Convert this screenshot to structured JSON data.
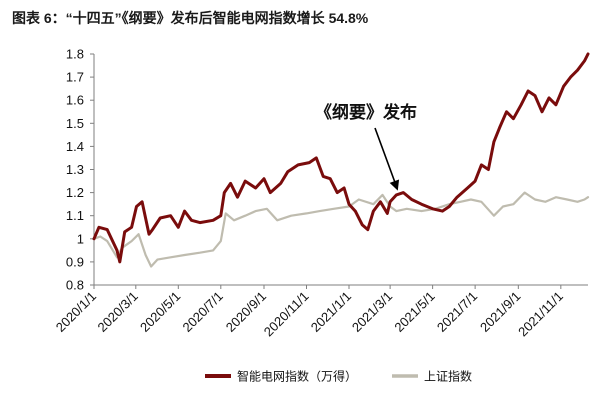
{
  "chart_data": {
    "type": "line",
    "title": "图表 6：“十四五”《纲要》发布后智能电网指数增长 54.8%",
    "xlabel": "",
    "ylabel": "",
    "ylim": [
      0.8,
      1.8
    ],
    "yticks": [
      "0.8",
      "0.9",
      "1",
      "1.1",
      "1.2",
      "1.3",
      "1.4",
      "1.5",
      "1.6",
      "1.7",
      "1.8"
    ],
    "xticks": [
      "2020/1/1",
      "2020/3/1",
      "2020/5/1",
      "2020/7/1",
      "2020/9/1",
      "2020/11/1",
      "2021/1/1",
      "2021/3/1",
      "2021/5/1",
      "2021/7/1",
      "2021/9/1",
      "2021/11/1"
    ],
    "grid": false,
    "legend_position": "bottom",
    "annotation": {
      "text": "《纲要》发布",
      "x": "2021/3/12",
      "y": 1.2
    },
    "colors": {
      "smart_grid": "#7a0c0c",
      "shanghai": "#bfbcaf"
    },
    "series": [
      {
        "name": "智能电网指数（万得）",
        "points": [
          [
            "2020/1/1",
            1.0
          ],
          [
            "2020/1/8",
            1.05
          ],
          [
            "2020/1/20",
            1.04
          ],
          [
            "2020/2/3",
            0.95
          ],
          [
            "2020/2/7",
            0.9
          ],
          [
            "2020/2/14",
            1.03
          ],
          [
            "2020/2/24",
            1.05
          ],
          [
            "2020/3/2",
            1.14
          ],
          [
            "2020/3/10",
            1.16
          ],
          [
            "2020/3/20",
            1.02
          ],
          [
            "2020/3/25",
            1.04
          ],
          [
            "2020/4/5",
            1.09
          ],
          [
            "2020/4/20",
            1.1
          ],
          [
            "2020/5/1",
            1.05
          ],
          [
            "2020/5/10",
            1.12
          ],
          [
            "2020/5/20",
            1.08
          ],
          [
            "2020/6/1",
            1.07
          ],
          [
            "2020/6/20",
            1.08
          ],
          [
            "2020/7/1",
            1.1
          ],
          [
            "2020/7/6",
            1.2
          ],
          [
            "2020/7/15",
            1.24
          ],
          [
            "2020/7/25",
            1.18
          ],
          [
            "2020/8/5",
            1.25
          ],
          [
            "2020/8/20",
            1.22
          ],
          [
            "2020/9/1",
            1.26
          ],
          [
            "2020/9/10",
            1.2
          ],
          [
            "2020/9/25",
            1.24
          ],
          [
            "2020/10/5",
            1.29
          ],
          [
            "2020/10/20",
            1.32
          ],
          [
            "2020/11/5",
            1.33
          ],
          [
            "2020/11/15",
            1.35
          ],
          [
            "2020/11/25",
            1.27
          ],
          [
            "2020/12/5",
            1.26
          ],
          [
            "2020/12/15",
            1.2
          ],
          [
            "2020/12/25",
            1.22
          ],
          [
            "2021/1/1",
            1.15
          ],
          [
            "2021/1/10",
            1.12
          ],
          [
            "2021/1/20",
            1.06
          ],
          [
            "2021/1/28",
            1.04
          ],
          [
            "2021/2/5",
            1.12
          ],
          [
            "2021/2/15",
            1.16
          ],
          [
            "2021/2/25",
            1.11
          ],
          [
            "2021/3/1",
            1.16
          ],
          [
            "2021/3/10",
            1.19
          ],
          [
            "2021/3/20",
            1.2
          ],
          [
            "2021/4/1",
            1.17
          ],
          [
            "2021/4/15",
            1.15
          ],
          [
            "2021/5/1",
            1.13
          ],
          [
            "2021/5/15",
            1.12
          ],
          [
            "2021/5/25",
            1.14
          ],
          [
            "2021/6/5",
            1.18
          ],
          [
            "2021/6/20",
            1.22
          ],
          [
            "2021/7/1",
            1.25
          ],
          [
            "2021/7/10",
            1.32
          ],
          [
            "2021/7/20",
            1.3
          ],
          [
            "2021/7/28",
            1.42
          ],
          [
            "2021/8/5",
            1.48
          ],
          [
            "2021/8/15",
            1.55
          ],
          [
            "2021/8/25",
            1.52
          ],
          [
            "2021/9/5",
            1.58
          ],
          [
            "2021/9/15",
            1.64
          ],
          [
            "2021/9/25",
            1.62
          ],
          [
            "2021/10/5",
            1.55
          ],
          [
            "2021/10/15",
            1.61
          ],
          [
            "2021/10/25",
            1.58
          ],
          [
            "2021/11/5",
            1.66
          ],
          [
            "2021/11/15",
            1.7
          ],
          [
            "2021/11/25",
            1.73
          ],
          [
            "2021/12/5",
            1.77
          ],
          [
            "2021/12/10",
            1.8
          ]
        ]
      },
      {
        "name": "上证指数",
        "points": [
          [
            "2020/1/1",
            1.0
          ],
          [
            "2020/1/10",
            1.01
          ],
          [
            "2020/1/20",
            0.99
          ],
          [
            "2020/2/3",
            0.92
          ],
          [
            "2020/2/10",
            0.96
          ],
          [
            "2020/2/24",
            0.99
          ],
          [
            "2020/3/5",
            1.02
          ],
          [
            "2020/3/15",
            0.93
          ],
          [
            "2020/3/23",
            0.88
          ],
          [
            "2020/4/1",
            0.91
          ],
          [
            "2020/4/20",
            0.92
          ],
          [
            "2020/5/10",
            0.93
          ],
          [
            "2020/6/1",
            0.94
          ],
          [
            "2020/6/20",
            0.95
          ],
          [
            "2020/7/1",
            0.99
          ],
          [
            "2020/7/8",
            1.11
          ],
          [
            "2020/7/20",
            1.08
          ],
          [
            "2020/8/5",
            1.1
          ],
          [
            "2020/8/20",
            1.12
          ],
          [
            "2020/9/5",
            1.13
          ],
          [
            "2020/9/20",
            1.08
          ],
          [
            "2020/10/10",
            1.1
          ],
          [
            "2020/11/1",
            1.11
          ],
          [
            "2020/11/20",
            1.12
          ],
          [
            "2020/12/10",
            1.13
          ],
          [
            "2021/1/1",
            1.14
          ],
          [
            "2021/1/15",
            1.17
          ],
          [
            "2021/2/5",
            1.15
          ],
          [
            "2021/2/18",
            1.19
          ],
          [
            "2021/3/1",
            1.14
          ],
          [
            "2021/3/10",
            1.12
          ],
          [
            "2021/3/25",
            1.13
          ],
          [
            "2021/4/15",
            1.12
          ],
          [
            "2021/5/5",
            1.13
          ],
          [
            "2021/5/25",
            1.15
          ],
          [
            "2021/6/10",
            1.16
          ],
          [
            "2021/6/25",
            1.17
          ],
          [
            "2021/7/10",
            1.16
          ],
          [
            "2021/7/28",
            1.1
          ],
          [
            "2021/8/10",
            1.14
          ],
          [
            "2021/8/25",
            1.15
          ],
          [
            "2021/9/10",
            1.2
          ],
          [
            "2021/9/25",
            1.17
          ],
          [
            "2021/10/10",
            1.16
          ],
          [
            "2021/10/25",
            1.18
          ],
          [
            "2021/11/10",
            1.17
          ],
          [
            "2021/11/25",
            1.16
          ],
          [
            "2021/12/5",
            1.17
          ],
          [
            "2021/12/10",
            1.18
          ]
        ]
      }
    ]
  }
}
